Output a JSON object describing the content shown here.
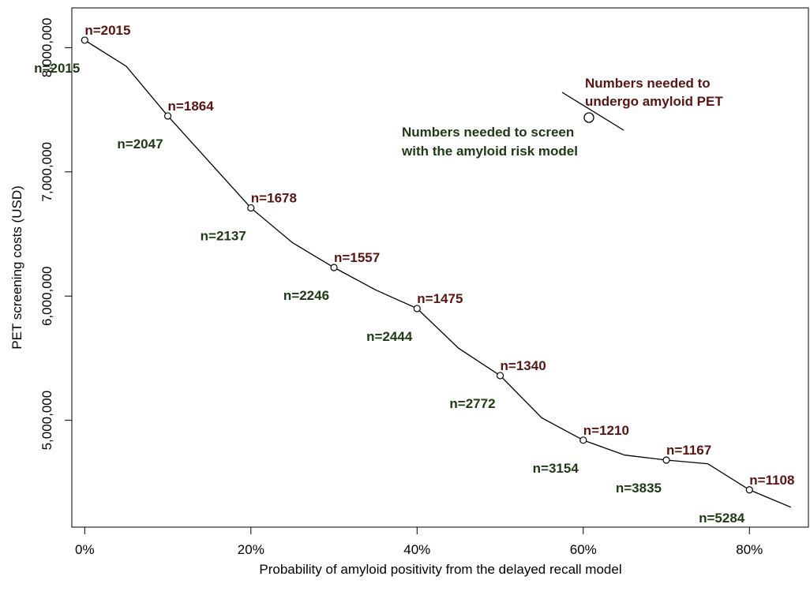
{
  "chart_data": {
    "type": "line",
    "xlabel": "Probability of amyloid positivity from the delayed recall model",
    "ylabel": "PET screening costs (USD)",
    "xlim": [
      -0.0155,
      0.871
    ],
    "ylim": [
      4140000,
      8320000
    ],
    "x_ticks": [
      0,
      0.2,
      0.4,
      0.6,
      0.8
    ],
    "x_tick_labels": [
      "0%",
      "20%",
      "40%",
      "60%",
      "80%"
    ],
    "y_ticks": [
      5000000,
      6000000,
      7000000,
      8000000
    ],
    "y_tick_labels": [
      "5,000,000",
      "6,000,000",
      "7,000,000",
      "8,000,000"
    ],
    "line": {
      "x": [
        0,
        0.05,
        0.1,
        0.15,
        0.2,
        0.25,
        0.3,
        0.35,
        0.4,
        0.45,
        0.5,
        0.55,
        0.6,
        0.65,
        0.7,
        0.75,
        0.8,
        0.85
      ],
      "y": [
        8060000,
        7850000,
        7450000,
        7080000,
        6710000,
        6430000,
        6230000,
        6050000,
        5900000,
        5580000,
        5360000,
        5020000,
        4840000,
        4720000,
        4680000,
        4650000,
        4440000,
        4300000
      ]
    },
    "markers": {
      "x": [
        0,
        0.1,
        0.2,
        0.3,
        0.4,
        0.5,
        0.6,
        0.7,
        0.8
      ],
      "y": [
        8060000,
        7450000,
        6710000,
        6230000,
        5900000,
        5360000,
        4840000,
        4680000,
        4440000
      ]
    },
    "pet_labels": [
      "n=2015",
      "n=1864",
      "n=1678",
      "n=1557",
      "n=1475",
      "n=1340",
      "n=1210",
      "n=1167",
      "n=1108"
    ],
    "screen_labels": [
      "n=2015",
      "n=2047",
      "n=2137",
      "n=2246",
      "n=2444",
      "n=2772",
      "n=3154",
      "n=3835",
      "n=5284"
    ],
    "legend": {
      "pet_line1": "Numbers needed to",
      "pet_line2": "undergo amyloid PET",
      "screen_line1": "Numbers needed to screen",
      "screen_line2": "with the amyloid risk model"
    },
    "colors": {
      "line": "#000000",
      "pet_label": "#5a1414",
      "screen_label": "#1e3a14"
    }
  }
}
